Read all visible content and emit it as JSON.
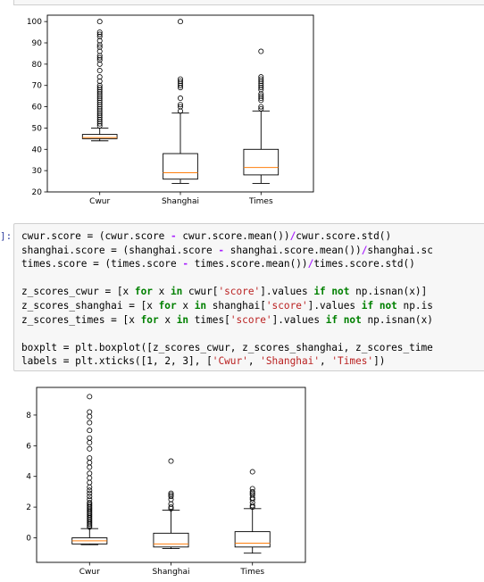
{
  "notebook": {
    "cell_prompt": "]:",
    "code_lines": [
      [
        [
          "cwur.score = (cwur.score ",
          ""
        ],
        [
          "-",
          "op"
        ],
        [
          " cwur.score.mean())",
          ""
        ],
        [
          "/",
          "op"
        ],
        [
          "cwur.score.std()",
          ""
        ]
      ],
      [
        [
          "shanghai.score = (shanghai.score ",
          ""
        ],
        [
          "-",
          "op"
        ],
        [
          " shanghai.score.mean())",
          ""
        ],
        [
          "/",
          "op"
        ],
        [
          "shanghai.sc",
          ""
        ]
      ],
      [
        [
          "times.score = (times.score ",
          ""
        ],
        [
          "-",
          "op"
        ],
        [
          " times.score.mean())",
          ""
        ],
        [
          "/",
          "op"
        ],
        [
          "times.score.std()",
          ""
        ]
      ],
      [
        [
          "",
          ""
        ]
      ],
      [
        [
          "z_scores_cwur = [x ",
          ""
        ],
        [
          "for",
          "kw"
        ],
        [
          " x ",
          ""
        ],
        [
          "in",
          "kw"
        ],
        [
          " cwur[",
          ""
        ],
        [
          "'score'",
          "str"
        ],
        [
          "].values ",
          ""
        ],
        [
          "if",
          "kw"
        ],
        [
          " ",
          ""
        ],
        [
          "not",
          "kw"
        ],
        [
          " np.isnan(x)]",
          ""
        ]
      ],
      [
        [
          "z_scores_shanghai = [x ",
          ""
        ],
        [
          "for",
          "kw"
        ],
        [
          " x ",
          ""
        ],
        [
          "in",
          "kw"
        ],
        [
          " shanghai[",
          ""
        ],
        [
          "'score'",
          "str"
        ],
        [
          "].values ",
          ""
        ],
        [
          "if",
          "kw"
        ],
        [
          " ",
          ""
        ],
        [
          "not",
          "kw"
        ],
        [
          " np.is",
          ""
        ]
      ],
      [
        [
          "z_scores_times = [x ",
          ""
        ],
        [
          "for",
          "kw"
        ],
        [
          " x ",
          ""
        ],
        [
          "in",
          "kw"
        ],
        [
          " times[",
          ""
        ],
        [
          "'score'",
          "str"
        ],
        [
          "].values ",
          ""
        ],
        [
          "if",
          "kw"
        ],
        [
          " ",
          ""
        ],
        [
          "not",
          "kw"
        ],
        [
          " np.isnan(x)",
          ""
        ]
      ],
      [
        [
          "",
          ""
        ]
      ],
      [
        [
          "boxplt = plt.boxplot([z_scores_cwur, z_scores_shanghai, z_scores_time",
          ""
        ]
      ],
      [
        [
          "labels = plt.xticks([",
          ""
        ],
        [
          "1",
          ""
        ],
        [
          ", ",
          ""
        ],
        [
          "2",
          ""
        ],
        [
          ", ",
          ""
        ],
        [
          "3",
          ""
        ],
        [
          "], [",
          ""
        ],
        [
          "'Cwur'",
          "str"
        ],
        [
          ", ",
          ""
        ],
        [
          "'Shanghai'",
          "str"
        ],
        [
          ", ",
          ""
        ],
        [
          "'Times'",
          "str"
        ],
        [
          "])",
          ""
        ]
      ]
    ]
  },
  "chart_data": [
    {
      "type": "boxplot",
      "categories": [
        "Cwur",
        "Shanghai",
        "Times"
      ],
      "ylim": [
        20,
        103
      ],
      "yticks": [
        "20",
        "30",
        "40",
        "50",
        "60",
        "70",
        "80",
        "90",
        "100"
      ],
      "grid": false,
      "boxes": [
        {
          "whislo": 44,
          "q1": 45,
          "med": 45.5,
          "q3": 47,
          "whishi": 50,
          "fliers": [
            51,
            52,
            53,
            54,
            55,
            56,
            57,
            58,
            59,
            60,
            61,
            62,
            63,
            64,
            65,
            66,
            67,
            68,
            69,
            70,
            72,
            74,
            77,
            80,
            82,
            83,
            84,
            86,
            88,
            89,
            91,
            93,
            94,
            95,
            100
          ]
        },
        {
          "whislo": 24,
          "q1": 26,
          "med": 29,
          "q3": 38,
          "whishi": 57,
          "fliers": [
            58,
            60,
            61,
            64,
            69,
            70,
            71,
            72,
            73,
            100
          ]
        },
        {
          "whislo": 24,
          "q1": 28,
          "med": 31.5,
          "q3": 40,
          "whishi": 58,
          "fliers": [
            59,
            60,
            63,
            64,
            65,
            66,
            68,
            69,
            70,
            71,
            72,
            73,
            74,
            86
          ]
        }
      ]
    },
    {
      "type": "boxplot",
      "categories": [
        "Cwur",
        "Shanghai",
        "Times"
      ],
      "ylim": [
        -1.6,
        9.8
      ],
      "yticks": [
        "0",
        "2",
        "4",
        "6",
        "8"
      ],
      "grid": false,
      "boxes": [
        {
          "whislo": -0.45,
          "q1": -0.4,
          "med": -0.2,
          "q3": 0.0,
          "whishi": 0.6,
          "fliers": [
            0.7,
            0.8,
            0.9,
            1.0,
            1.1,
            1.2,
            1.3,
            1.4,
            1.5,
            1.6,
            1.7,
            1.8,
            1.9,
            2.0,
            2.1,
            2.2,
            2.3,
            2.5,
            2.7,
            2.9,
            3.1,
            3.3,
            3.6,
            3.9,
            4.2,
            4.6,
            4.9,
            5.2,
            5.8,
            6.2,
            6.5,
            7.0,
            7.5,
            7.9,
            8.2,
            9.2
          ]
        },
        {
          "whislo": -0.7,
          "q1": -0.6,
          "med": -0.4,
          "q3": 0.3,
          "whishi": 1.8,
          "fliers": [
            1.9,
            2.0,
            2.2,
            2.5,
            2.7,
            2.8,
            2.9,
            5.0
          ]
        },
        {
          "whislo": -1.0,
          "q1": -0.6,
          "med": -0.35,
          "q3": 0.4,
          "whishi": 1.9,
          "fliers": [
            2.0,
            2.1,
            2.3,
            2.5,
            2.6,
            2.8,
            2.9,
            3.0,
            3.2,
            4.3
          ]
        }
      ]
    }
  ]
}
